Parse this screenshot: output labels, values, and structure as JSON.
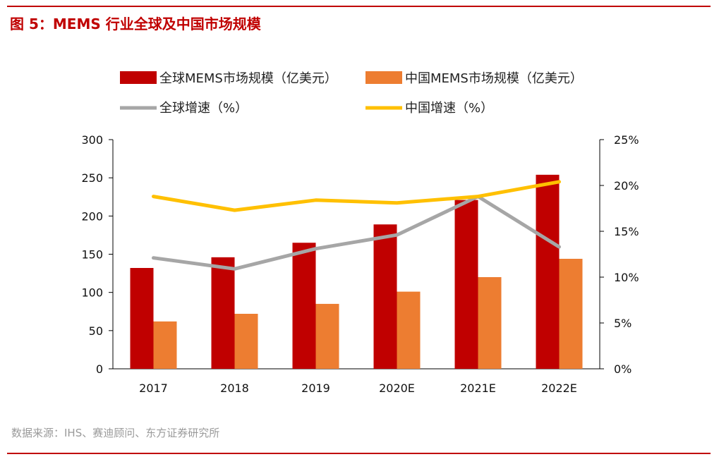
{
  "title": "图 5：MEMS 行业全球及中国市场规模",
  "source": "数据来源：IHS、赛迪顾问、东方证券研究所",
  "chart_data": {
    "type": "bar",
    "categories": [
      "2017",
      "2018",
      "2019",
      "2020E",
      "2021E",
      "2022E"
    ],
    "series": [
      {
        "name": "全球MEMS市场规模（亿美元）",
        "kind": "bar",
        "axis": "left",
        "color": "#c00000",
        "values": [
          132,
          146,
          165,
          189,
          221,
          254
        ]
      },
      {
        "name": "中国MEMS市场规模（亿美元）",
        "kind": "bar",
        "axis": "left",
        "color": "#ed7d31",
        "values": [
          62,
          72,
          85,
          101,
          120,
          144
        ]
      },
      {
        "name": "全球增速（%）",
        "kind": "line",
        "axis": "right",
        "color": "#a6a6a6",
        "values": [
          12.1,
          10.9,
          13.1,
          14.6,
          18.8,
          13.3
        ]
      },
      {
        "name": "中国增速（%）",
        "kind": "line",
        "axis": "right",
        "color": "#ffc000",
        "values": [
          18.8,
          17.3,
          18.4,
          18.1,
          18.8,
          20.4
        ]
      }
    ],
    "left_axis": {
      "min": 0,
      "max": 300,
      "ticks": [
        "0",
        "50",
        "100",
        "150",
        "200",
        "250",
        "300"
      ]
    },
    "right_axis": {
      "min": 0,
      "max": 25,
      "ticks": [
        "0%",
        "5%",
        "10%",
        "15%",
        "20%",
        "25%"
      ]
    },
    "legend_placement": "top",
    "grid": false
  }
}
